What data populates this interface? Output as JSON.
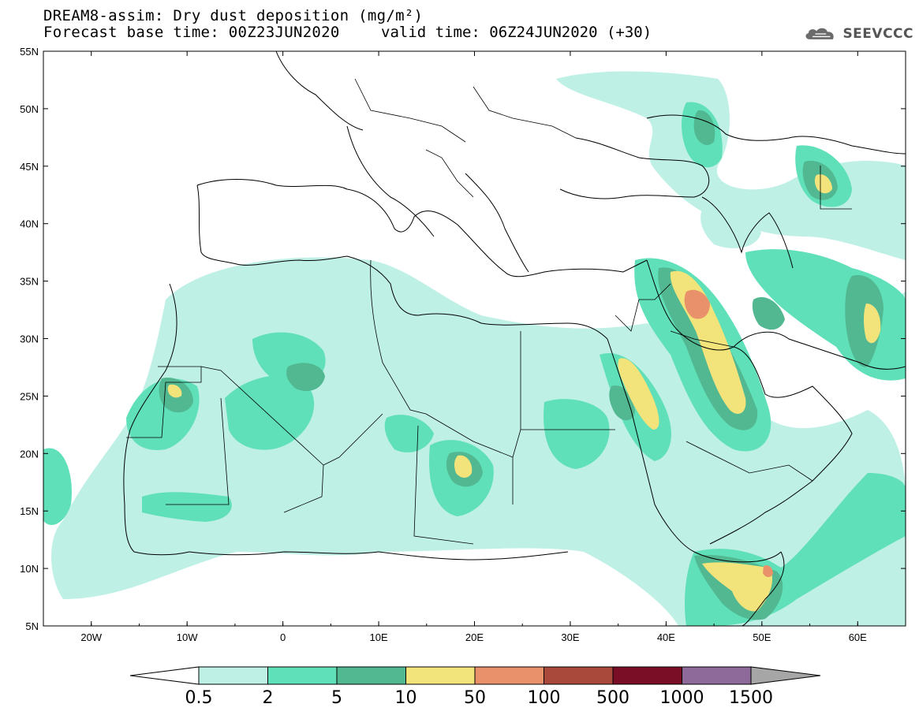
{
  "title": {
    "line1": "DREAM8-assim: Dry dust deposition (mg/m²)",
    "line2": "Forecast base time: 00Z23JUN2020",
    "valid": "valid time: 06Z24JUN2020 (+30)"
  },
  "logo": {
    "text": "SEEVCCC",
    "icon": "cloud-icon"
  },
  "axes": {
    "lon_labels": [
      "20W",
      "10W",
      "0",
      "10E",
      "20E",
      "30E",
      "40E",
      "50E",
      "60E"
    ],
    "lat_labels": [
      "55N",
      "50N",
      "45N",
      "40N",
      "35N",
      "30N",
      "25N",
      "20N",
      "15N",
      "10N",
      "5N"
    ],
    "lon_range": [
      -25,
      65
    ],
    "lat_range": [
      5,
      55
    ]
  },
  "colorbar": {
    "labels": [
      "0.5",
      "2",
      "5",
      "10",
      "50",
      "100",
      "500",
      "1000",
      "1500"
    ],
    "colors": [
      "#bff0e6",
      "#5fe0b8",
      "#52b892",
      "#f2e37a",
      "#e8916a",
      "#a8493c",
      "#7a0e26",
      "#8d6a9a"
    ],
    "over_color": "#a6a6a6",
    "under_color": "#ffffff"
  }
}
